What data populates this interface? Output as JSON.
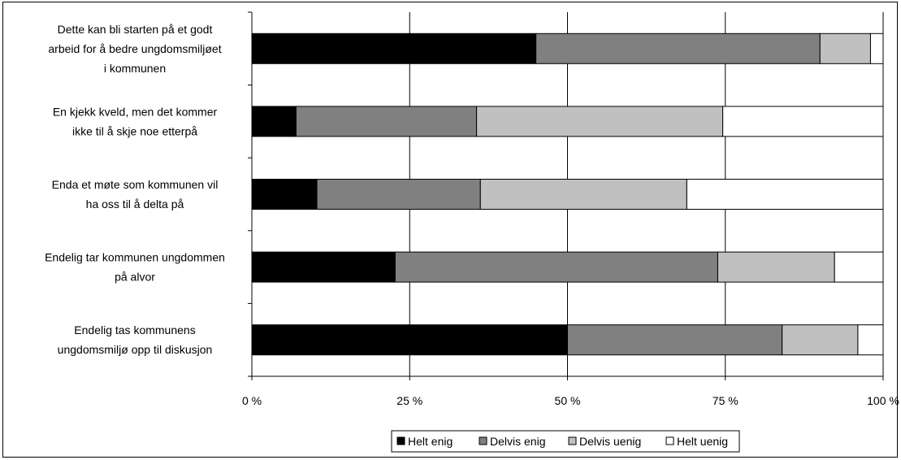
{
  "chart_data": {
    "type": "bar",
    "orientation": "horizontal",
    "stacked": true,
    "normalized": true,
    "categories": [
      "Dette kan bli starten på et godt arbeid for å bedre ungdomsmiljøet i kommunen",
      "En kjekk kveld, men det kommer ikke til å skje noe etterpå",
      "Enda et møte som kommunen vil ha oss til å delta på",
      "Endelig tar kommunen ungdommen på alvor",
      "Endelig tas kommunens ungdomsmiljø opp til diskusjon"
    ],
    "category_lines": [
      [
        "Dette kan bli starten på et godt",
        "arbeid for å bedre ungdomsmiljøet",
        "i kommunen"
      ],
      [
        "En kjekk kveld, men det kommer",
        "ikke til å skje noe etterpå"
      ],
      [
        "Enda et møte som kommunen vil",
        "ha oss til å delta på"
      ],
      [
        "Endelig tar kommunen ungdommen",
        "på alvor"
      ],
      [
        "Endelig tas kommunens",
        "ungdomsmiljø opp til diskusjon"
      ]
    ],
    "series": [
      {
        "name": "Helt enig",
        "color": "#000000",
        "values": [
          45,
          7,
          10.3,
          22.7,
          50
        ]
      },
      {
        "name": "Delvis enig",
        "color": "#808080",
        "values": [
          45,
          28.6,
          25.9,
          51.1,
          34
        ]
      },
      {
        "name": "Delvis uenig",
        "color": "#c0c0c0",
        "values": [
          8,
          39,
          32.7,
          18.5,
          12
        ]
      },
      {
        "name": "Helt uenig",
        "color": "#ffffff",
        "values": [
          2,
          25.4,
          31.1,
          7.7,
          4
        ]
      }
    ],
    "x_ticks": [
      "0 %",
      "25 %",
      "50 %",
      "75 %",
      "100 %"
    ],
    "xlim": [
      0,
      100
    ],
    "grid": true,
    "legend_position": "bottom"
  }
}
